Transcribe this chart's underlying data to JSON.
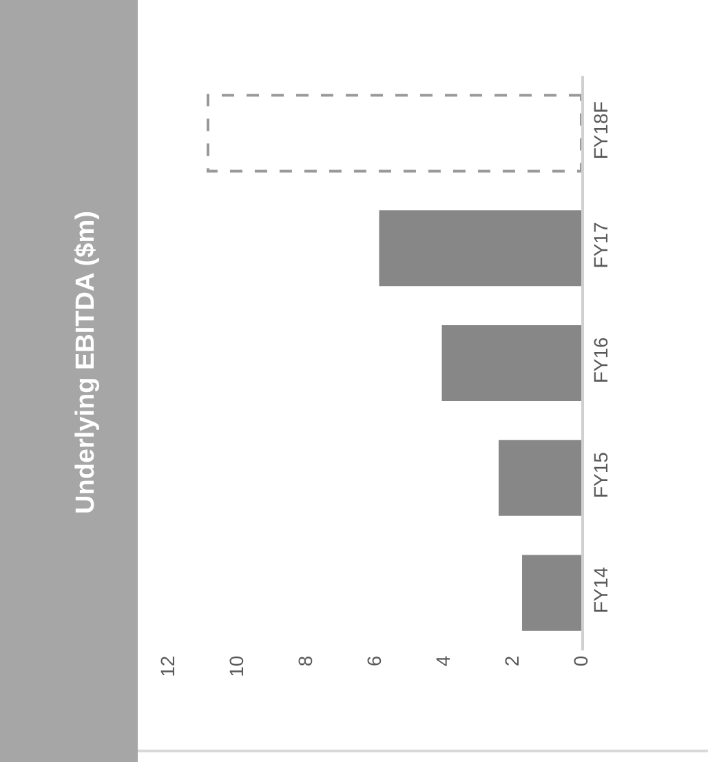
{
  "chart_data": {
    "type": "bar",
    "orientation": "horizontal",
    "title": "Underlying EBITDA ($m)",
    "categories": [
      "FY18F",
      "FY17",
      "FY16",
      "FY15",
      "FY14"
    ],
    "series": [
      {
        "color": "#878787",
        "values": [
          null,
          5.87,
          4.05,
          2.4,
          1.72
        ]
      },
      {
        "color": "#999999",
        "line_style": "dashed",
        "values": [
          10.84,
          null,
          null,
          null,
          null
        ]
      }
    ],
    "xlim": [
      12,
      0
    ],
    "xticks": [
      12,
      10,
      8,
      6,
      4,
      2,
      0
    ],
    "legend": false
  }
}
